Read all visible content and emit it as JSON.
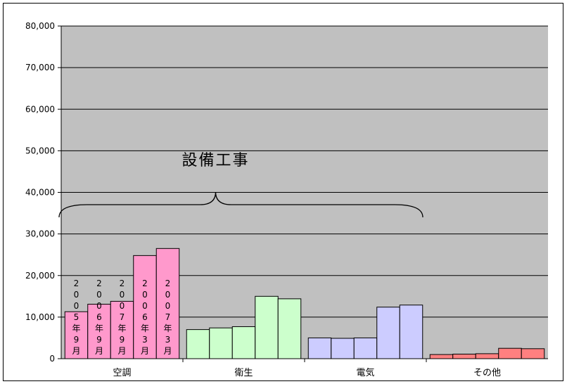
{
  "chart_data": {
    "type": "bar",
    "categories": [
      "空調",
      "衛生",
      "電気",
      "その他"
    ],
    "series": [
      {
        "name": "2005年9月",
        "values": [
          11300,
          7000,
          5000,
          1000
        ],
        "label_chars": [
          "2",
          "0",
          "0",
          "5",
          "年",
          "9",
          "月"
        ]
      },
      {
        "name": "2006年9月",
        "values": [
          13100,
          7400,
          4900,
          1100
        ],
        "label_chars": [
          "2",
          "0",
          "0",
          "6",
          "年",
          "9",
          "月"
        ]
      },
      {
        "name": "2007年9月",
        "values": [
          13800,
          7700,
          5000,
          1200
        ],
        "label_chars": [
          "2",
          "0",
          "0",
          "7",
          "年",
          "9",
          "月"
        ]
      },
      {
        "name": "2006年3月",
        "values": [
          24800,
          15000,
          12400,
          2500
        ],
        "label_chars": [
          "2",
          "0",
          "0",
          "6",
          "年",
          "3",
          "月"
        ]
      },
      {
        "name": "2007年3月",
        "values": [
          26500,
          14400,
          12900,
          2400
        ],
        "label_chars": [
          "2",
          "0",
          "0",
          "7",
          "年",
          "3",
          "月"
        ]
      }
    ],
    "category_colors": [
      "#ff99cc",
      "#ccffcc",
      "#ccccff",
      "#ff8080"
    ],
    "ylim": [
      0,
      80000
    ],
    "yticks": [
      0,
      10000,
      20000,
      30000,
      40000,
      50000,
      60000,
      70000,
      80000
    ],
    "ytick_labels": [
      "0",
      "10,000",
      "20,000",
      "30,000",
      "40,000",
      "50,000",
      "60,000",
      "70,000",
      "80,000"
    ],
    "gridlines": true,
    "plot_background": "#c0c0c0",
    "annotation": {
      "text": "設備工事",
      "spans_categories": [
        "空調",
        "衛生",
        "電気"
      ]
    },
    "title": "",
    "xlabel": "",
    "ylabel": ""
  }
}
